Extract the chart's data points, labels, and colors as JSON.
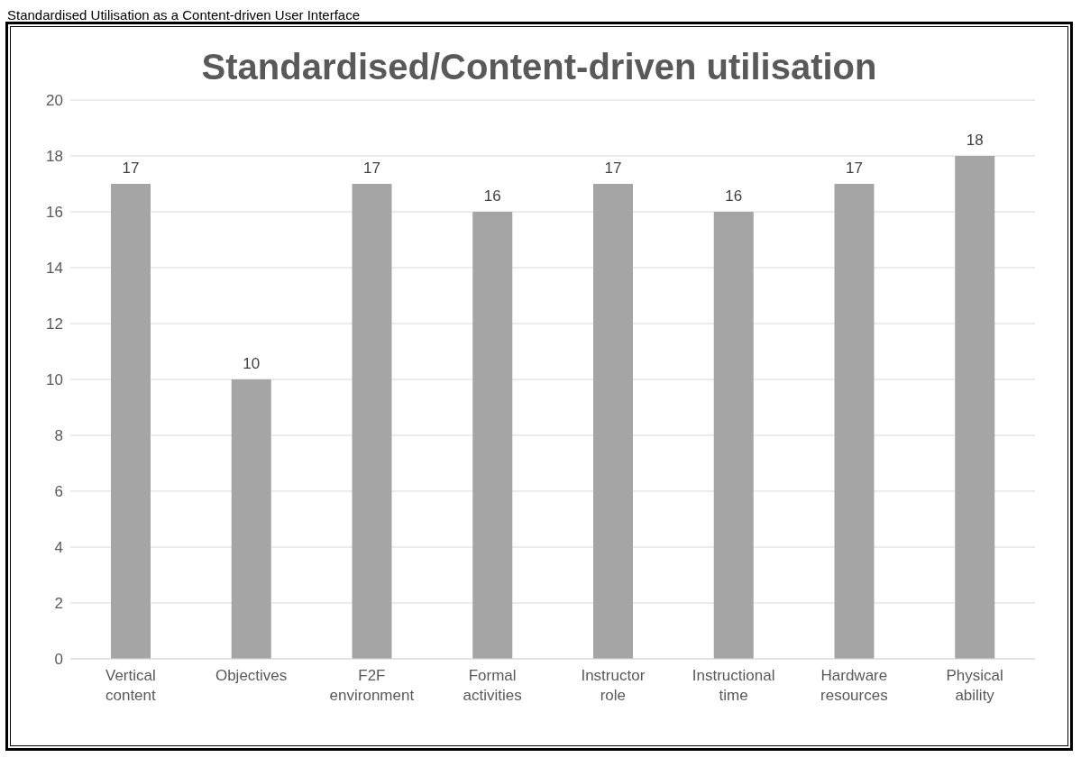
{
  "chart_data": {
    "type": "bar",
    "title": "Standardised/Content-driven utilisation",
    "annotations": [
      "Standardised Utilisation as a Content-driven User Interface"
    ],
    "categories": [
      "Vertical content",
      "Objectives",
      "F2F environment",
      "Formal activities",
      "Instructor role",
      "Instructional time",
      "Hardware resources",
      "Physical ability"
    ],
    "values": [
      17,
      10,
      17,
      16,
      17,
      16,
      17,
      18
    ],
    "color": "#a5a5a5",
    "ylim": [
      0,
      20
    ],
    "yticks": [
      0,
      2,
      4,
      6,
      8,
      10,
      12,
      14,
      16,
      18,
      20
    ],
    "grid": "y",
    "data_labels": true
  }
}
